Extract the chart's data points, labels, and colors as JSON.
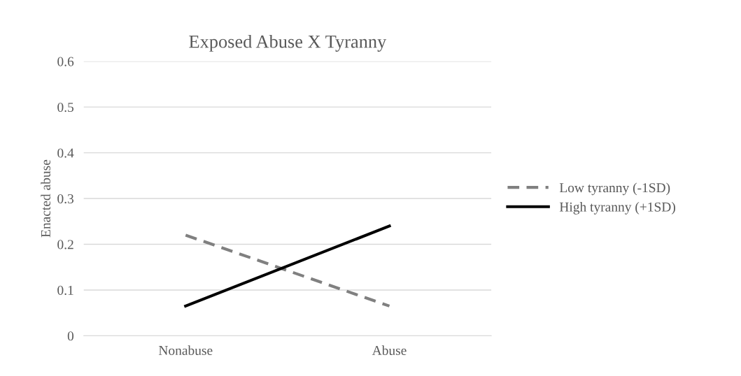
{
  "chart_data": {
    "type": "line",
    "title": "Exposed Abuse X Tyranny",
    "ylabel": "Enacted abuse",
    "categories": [
      "Nonabuse",
      "Abuse"
    ],
    "series": [
      {
        "name": "Low tyranny (-1SD)",
        "color": "#808080",
        "values": [
          0.22,
          0.065
        ],
        "line_style": "dashed"
      },
      {
        "name": "High tyranny (+1SD)",
        "color": "#000000",
        "values": [
          0.065,
          0.24
        ],
        "line_style": "solid"
      }
    ],
    "ylim": [
      0,
      0.6
    ],
    "yticks": [
      {
        "value": 0,
        "label": "0"
      },
      0.1,
      0.2,
      0.3,
      0.4,
      0.5,
      0.6
    ],
    "grid": "y",
    "legend": "right",
    "marker": "none"
  }
}
